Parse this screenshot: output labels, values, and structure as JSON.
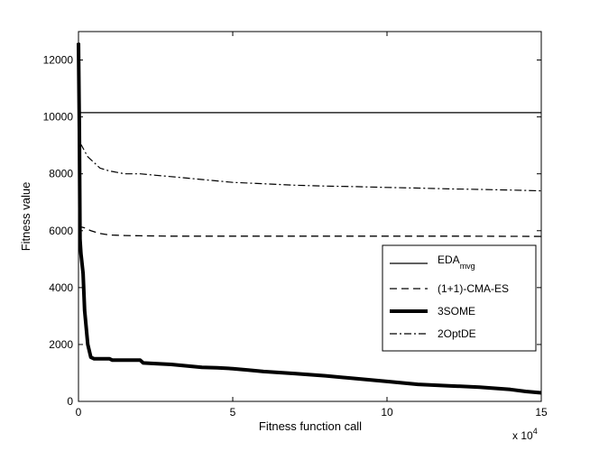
{
  "chart_data": {
    "type": "line",
    "xlabel": "Fitness function call",
    "ylabel": "Fitness value",
    "x_multiplier_label": {
      "base": "x 10",
      "exp": "4"
    },
    "xlim": [
      0,
      150000
    ],
    "ylim": [
      0,
      13000
    ],
    "x_ticks": [
      0,
      50000,
      100000,
      150000
    ],
    "x_tick_labels": [
      "0",
      "5",
      "10",
      "15"
    ],
    "y_ticks": [
      0,
      2000,
      4000,
      6000,
      8000,
      10000,
      12000
    ],
    "y_tick_labels": [
      "0",
      "2000",
      "4000",
      "6000",
      "8000",
      "10000",
      "12000"
    ],
    "grid": false,
    "legend_position": "bottom-right",
    "series": [
      {
        "name": "EDA",
        "name_sub": "mvg",
        "style": "solid",
        "x": [
          0,
          100,
          200,
          150000
        ],
        "y": [
          12600,
          12600,
          10150,
          10150
        ]
      },
      {
        "name": "(1+1)-CMA-ES",
        "style": "dashed",
        "x": [
          0,
          500,
          1000,
          2000,
          4000,
          7000,
          10000,
          15000,
          20000,
          30000,
          50000,
          75000,
          100000,
          125000,
          150000
        ],
        "y": [
          6200,
          6150,
          6130,
          6100,
          6000,
          5900,
          5850,
          5830,
          5820,
          5810,
          5810,
          5810,
          5810,
          5810,
          5800
        ]
      },
      {
        "name": "3SOME",
        "style": "thick",
        "x": [
          0,
          300,
          500,
          800,
          1000,
          1500,
          2000,
          3000,
          4000,
          5000,
          6000,
          10000,
          11000,
          20000,
          21000,
          25000,
          30000,
          35000,
          40000,
          45000,
          50000,
          55000,
          60000,
          70000,
          80000,
          90000,
          100000,
          110000,
          120000,
          130000,
          140000,
          145000,
          150000
        ],
        "y": [
          12600,
          9500,
          5700,
          5200,
          5000,
          4500,
          3200,
          2000,
          1550,
          1500,
          1500,
          1500,
          1450,
          1450,
          1350,
          1330,
          1300,
          1250,
          1200,
          1180,
          1150,
          1100,
          1050,
          980,
          900,
          800,
          700,
          600,
          550,
          500,
          420,
          350,
          300
        ]
      },
      {
        "name": "2OptDE",
        "style": "dashdot",
        "x": [
          0,
          300,
          1000,
          2000,
          3000,
          5000,
          7000,
          10000,
          15000,
          20000,
          25000,
          30000,
          40000,
          50000,
          60000,
          70000,
          80000,
          90000,
          100000,
          110000,
          120000,
          130000,
          140000,
          150000
        ],
        "y": [
          12600,
          9100,
          9000,
          8800,
          8600,
          8400,
          8200,
          8100,
          8000,
          8000,
          7950,
          7900,
          7800,
          7700,
          7650,
          7600,
          7570,
          7550,
          7520,
          7500,
          7470,
          7450,
          7430,
          7400
        ]
      }
    ]
  }
}
